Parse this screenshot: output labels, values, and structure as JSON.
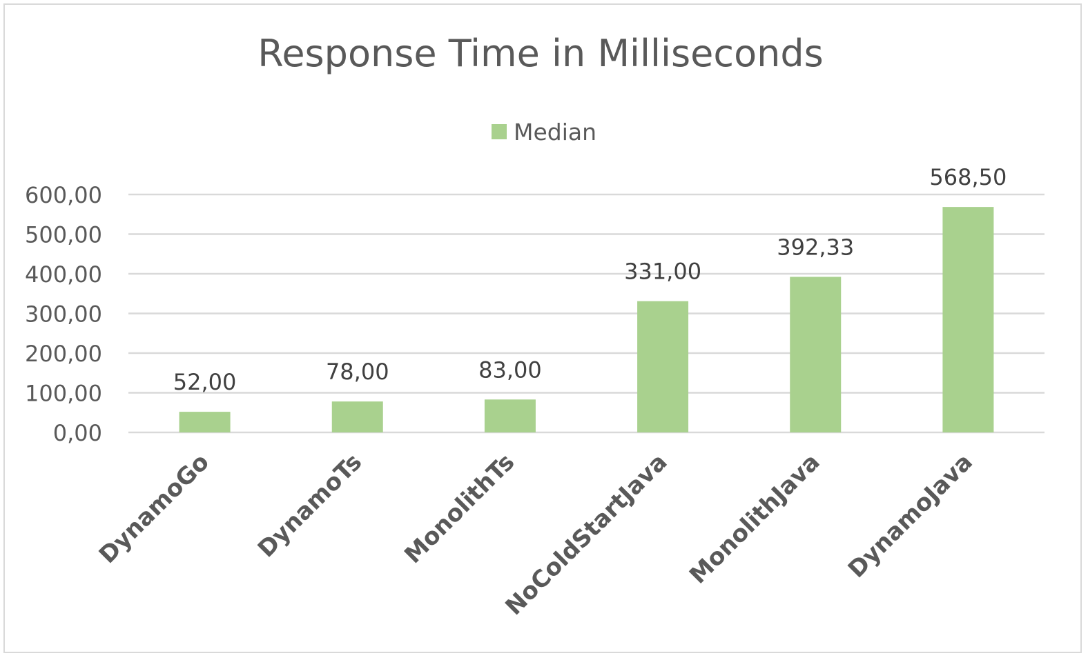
{
  "chart_data": {
    "type": "bar",
    "title": "Response Time in Milliseconds",
    "xlabel": "",
    "ylabel": "",
    "categories": [
      "DynamoGo",
      "DynamoTs",
      "MonolithTs",
      "NoColdStartJava",
      "MonolithJava",
      "DynamoJava"
    ],
    "series": [
      {
        "name": "Median",
        "values": [
          52.0,
          78.0,
          83.0,
          331.0,
          392.33,
          568.5
        ],
        "labels": [
          "52,00",
          "78,00",
          "83,00",
          "331,00",
          "392,33",
          "568,50"
        ],
        "color": "#a9d18e"
      }
    ],
    "ylim": [
      0,
      600
    ],
    "yticks": [
      0,
      100,
      200,
      300,
      400,
      500,
      600
    ],
    "ytick_labels": [
      "0,00",
      "100,00",
      "200,00",
      "300,00",
      "400,00",
      "500,00",
      "600,00"
    ],
    "grid": true,
    "legend_position": "top"
  },
  "colors": {
    "bar": "#a9d18e",
    "grid": "#d9d9d9",
    "text": "#595959",
    "frame": "#d9d9d9"
  }
}
